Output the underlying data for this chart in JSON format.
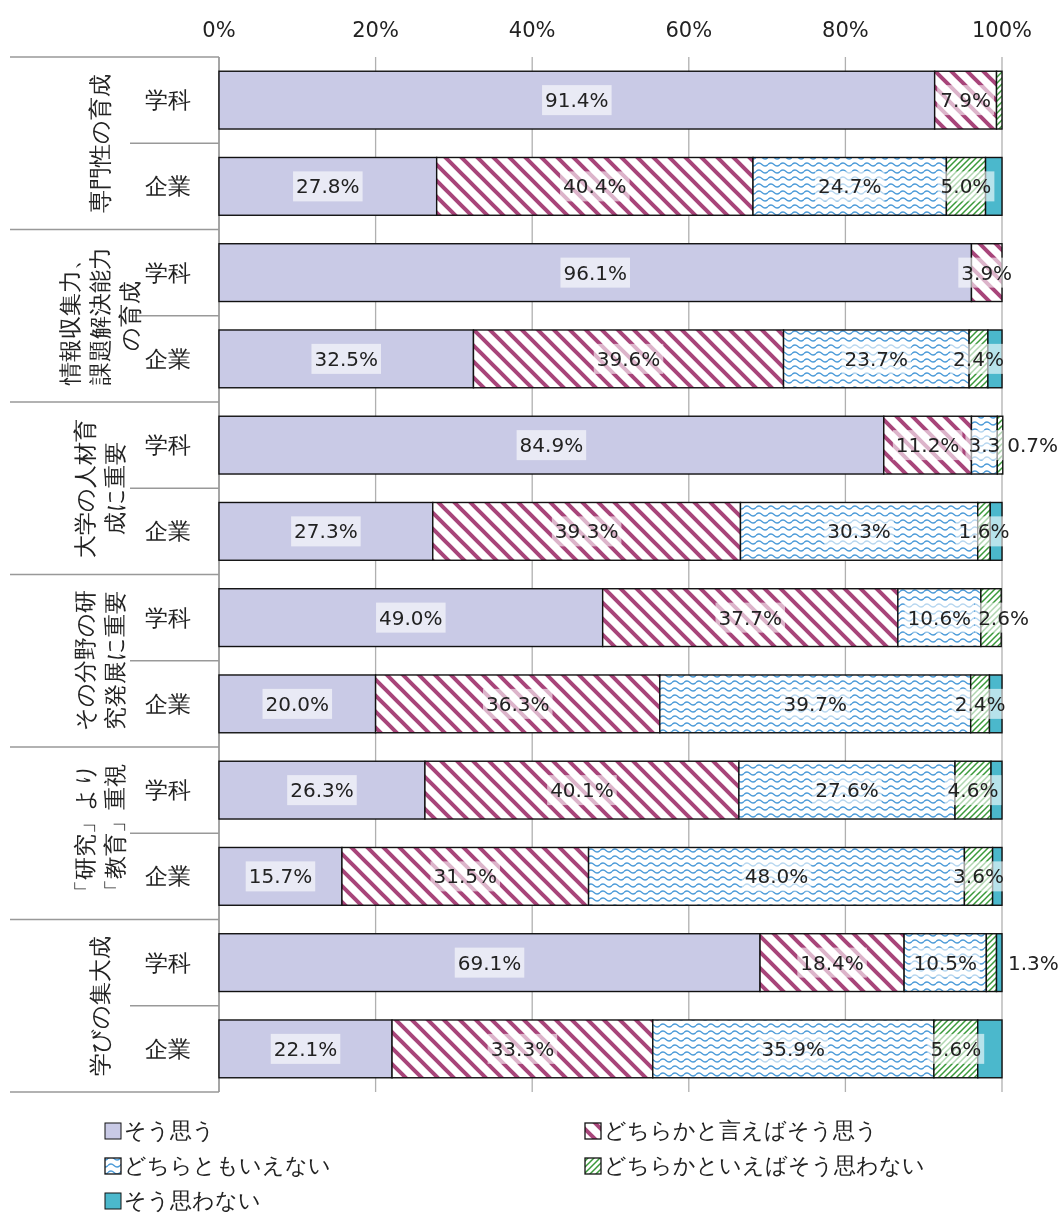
{
  "chart_data": {
    "type": "bar",
    "orientation": "horizontal",
    "stacked": true,
    "categories": [
      "学科",
      "企業",
      "学科",
      "企業",
      "学科",
      "企業",
      "学科",
      "企業",
      "学科",
      "企業",
      "学科",
      "企業"
    ],
    "annotations": [
      "専門性の育成",
      "情報収集力、課題解決能力の育成",
      "大学の人材育成に重要",
      "その分野の研究発展に重要",
      "「研究」より「教育」重視",
      "学びの集大成"
    ],
    "series": [
      {
        "name": "そう思う",
        "color": "#c9cae6",
        "values": [
          91.4,
          27.8,
          96.1,
          32.5,
          84.9,
          27.3,
          49.0,
          20.0,
          26.3,
          15.7,
          69.1,
          22.1
        ],
        "value_labels": [
          "91.4%",
          "27.8%",
          "96.1%",
          "32.5%",
          "84.9%",
          "27.3%",
          "49.0%",
          "20.0%",
          "26.3%",
          "15.7%",
          "69.1%",
          "22.1%"
        ]
      },
      {
        "name": "どちらかと言えばそう思う",
        "color": "#a8457a",
        "values": [
          7.9,
          40.4,
          3.9,
          39.6,
          11.2,
          39.3,
          37.7,
          36.3,
          40.1,
          31.5,
          18.4,
          33.3
        ],
        "value_labels": [
          "7.9%",
          "40.4%",
          "3.9%",
          "39.6%",
          "11.2%",
          "39.3%",
          "37.7%",
          "36.3%",
          "40.1%",
          "31.5%",
          "18.4%",
          "33.3%"
        ]
      },
      {
        "name": "どちらともいえない",
        "color": "#4a9ad8",
        "values": [
          0,
          24.7,
          0,
          23.7,
          3.3,
          30.3,
          10.6,
          39.7,
          27.6,
          48.0,
          10.5,
          35.9
        ],
        "value_labels": [
          null,
          "24.7%",
          null,
          "23.7%",
          "3.3",
          "30.3%",
          "10.6%",
          "39.7%",
          "27.6%",
          "48.0%",
          "10.5%",
          "35.9%"
        ]
      },
      {
        "name": "どちらかといえばそう思わない",
        "color": "#3a9a3a",
        "values": [
          0.7,
          5.0,
          0,
          2.4,
          0.7,
          1.6,
          2.6,
          2.4,
          4.6,
          3.6,
          1.3,
          5.6
        ],
        "value_labels": [
          null,
          "5.0%",
          null,
          "2.4%",
          "0.7%",
          "1.6%",
          "2.6%",
          "2.4%",
          "4.6%",
          "3.6%",
          "1.3%",
          "5.6%"
        ]
      },
      {
        "name": "そう思わない",
        "color": "#4bb8cc",
        "values": [
          0,
          2.1,
          0,
          1.8,
          0,
          1.5,
          0,
          1.6,
          1.4,
          1.2,
          0.7,
          3.1
        ],
        "value_labels": [
          null,
          null,
          null,
          null,
          null,
          null,
          null,
          null,
          null,
          null,
          null,
          null
        ]
      }
    ],
    "xlim": [
      0,
      100
    ],
    "xticks": [
      {
        "value": 0,
        "label": "0%"
      },
      {
        "value": 20,
        "label": "20%"
      },
      {
        "value": 40,
        "label": "40%"
      },
      {
        "value": 60,
        "label": "60%"
      },
      {
        "value": 80,
        "label": "80%"
      },
      {
        "value": 100,
        "label": "100%"
      }
    ],
    "grid": "x",
    "legend": "bottom"
  }
}
